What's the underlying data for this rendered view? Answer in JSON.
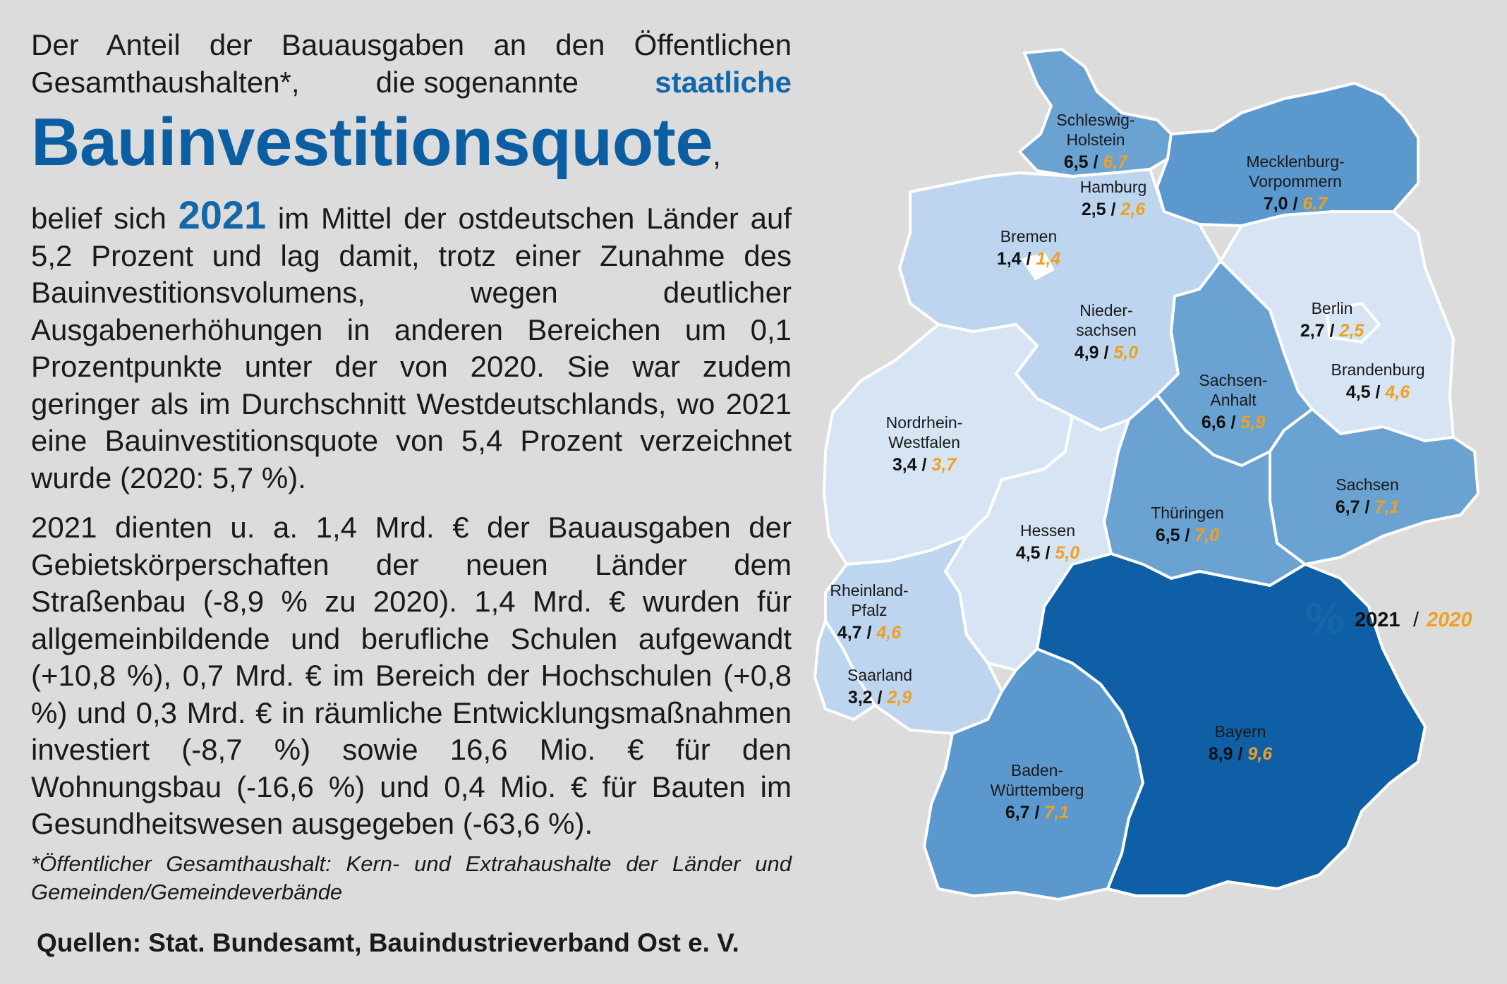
{
  "intro": {
    "line1": "Der Anteil der Bauausgaben an den Öffentlichen",
    "line2a": "Gesamthaushalten*,",
    "line2b": "die sogenannte",
    "line2c": "staatliche"
  },
  "headline": "Bauinvestitionsquote",
  "headline_suffix": ",",
  "paragraph1": {
    "before_year": "belief sich",
    "year": "2021",
    "after_year": "im Mittel der ostdeutschen Länder auf 5,2 Prozent und lag damit, trotz einer Zunahme des Bauinvestitionsvolumens, wegen deutlicher Ausgabenerhöhungen in anderen Bereichen um 0,1 Prozentpunkte unter der von 2020. Sie war zudem geringer als im Durchschnitt Westdeutschlands, wo 2021 eine Bauinvestitionsquote von 5,4 Prozent verzeichnet wurde (2020: 5,7 %)."
  },
  "paragraph2": "2021 dienten u. a. 1,4 Mrd. € der Bauausgaben der Gebietskörperschaften der neuen Länder dem Straßenbau (-8,9 % zu 2020). 1,4 Mrd. € wurden für allgemeinbildende und berufliche Schulen aufgewandt (+10,8 %), 0,7 Mrd. € im Bereich der Hochschulen (+0,8 %) und 0,3 Mrd. € in räumliche Entwicklungsmaßnahmen investiert (-8,7 %) sowie 16,6 Mio. € für den Wohnungsbau (-16,6 %) und 0,4 Mio. € für Bauten im Gesundheitswesen ausgegeben (-63,6 %).",
  "footnote": "*Öffentlicher Gesamthaushalt: Kern- und Extrahaushalte der Länder und Gemeinden/Gemeindeverbände",
  "sources": "Quellen: Stat. Bundesamt, Bauindustrieverband Ost e. V.",
  "legend": {
    "symbol": "%",
    "year_current": "2021",
    "separator": "/",
    "year_previous": "2020",
    "color_current": "#111111",
    "color_previous": "#f0a020"
  },
  "color_scale": {
    "lightest": "#d6e4f4",
    "light": "#bdd5ee",
    "medium": "#6aa2d2",
    "dark": "#5b98ce",
    "darkest": "#0f5fa6"
  },
  "states": [
    {
      "id": "schleswig-holstein",
      "name_lines": [
        "Schleswig-",
        "Holstein"
      ],
      "v2021": "6,5",
      "v2020": "6,7"
    },
    {
      "id": "hamburg",
      "name_lines": [
        "Hamburg"
      ],
      "v2021": "2,5",
      "v2020": "2,6"
    },
    {
      "id": "mecklenburg-vorpommern",
      "name_lines": [
        "Mecklenburg-",
        "Vorpommern"
      ],
      "v2021": "7,0",
      "v2020": "6,7"
    },
    {
      "id": "bremen",
      "name_lines": [
        "Bremen"
      ],
      "v2021": "1,4",
      "v2020": "1,4"
    },
    {
      "id": "niedersachsen",
      "name_lines": [
        "Nieder-",
        "sachsen"
      ],
      "v2021": "4,9",
      "v2020": "5,0"
    },
    {
      "id": "berlin",
      "name_lines": [
        "Berlin"
      ],
      "v2021": "2,7",
      "v2020": "2,5"
    },
    {
      "id": "brandenburg",
      "name_lines": [
        "Brandenburg"
      ],
      "v2021": "4,5",
      "v2020": "4,6"
    },
    {
      "id": "sachsen-anhalt",
      "name_lines": [
        "Sachsen-",
        "Anhalt"
      ],
      "v2021": "6,6",
      "v2020": "5,9"
    },
    {
      "id": "nordrhein-westfalen",
      "name_lines": [
        "Nordrhein-",
        "Westfalen"
      ],
      "v2021": "3,4",
      "v2020": "3,7"
    },
    {
      "id": "sachsen",
      "name_lines": [
        "Sachsen"
      ],
      "v2021": "6,7",
      "v2020": "7,1"
    },
    {
      "id": "thueringen",
      "name_lines": [
        "Thüringen"
      ],
      "v2021": "6,5",
      "v2020": "7,0"
    },
    {
      "id": "hessen",
      "name_lines": [
        "Hessen"
      ],
      "v2021": "4,5",
      "v2020": "5,0"
    },
    {
      "id": "rheinland-pfalz",
      "name_lines": [
        "Rheinland-",
        "Pfalz"
      ],
      "v2021": "4,7",
      "v2020": "4,6"
    },
    {
      "id": "saarland",
      "name_lines": [
        "Saarland"
      ],
      "v2021": "3,2",
      "v2020": "2,9"
    },
    {
      "id": "bayern",
      "name_lines": [
        "Bayern"
      ],
      "v2021": "8,9",
      "v2020": "9,6"
    },
    {
      "id": "baden-wuerttemberg",
      "name_lines": [
        "Baden-",
        "Württemberg"
      ],
      "v2021": "6,7",
      "v2020": "7,1"
    }
  ]
}
